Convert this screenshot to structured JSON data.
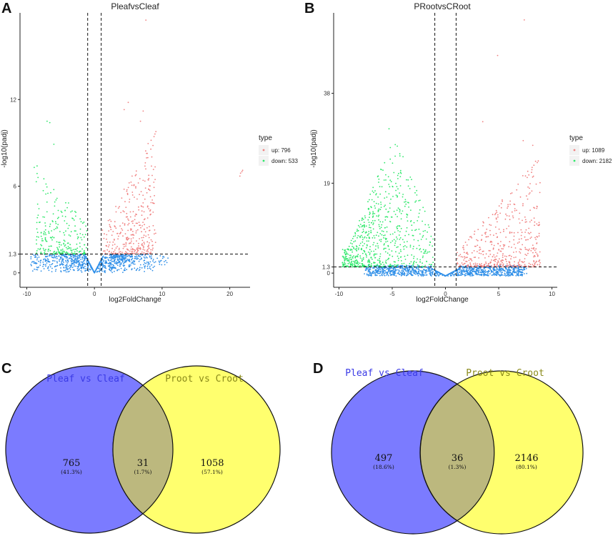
{
  "panels": {
    "A": {
      "letter": "A"
    },
    "B": {
      "letter": "B"
    },
    "C": {
      "letter": "C"
    },
    "D": {
      "letter": "D"
    }
  },
  "chart_data": [
    {
      "id": "A",
      "type": "scatter",
      "subtype": "volcano",
      "title": "PleafvsCleaf",
      "xlabel": "log2FoldChange",
      "ylabel": "-log10(padj)",
      "xlim": [
        -11,
        23
      ],
      "ylim": [
        -1,
        18
      ],
      "xticks": [
        -10,
        0,
        10,
        20
      ],
      "yticks": [
        0,
        1.3,
        6,
        12
      ],
      "vlines": [
        -1,
        1
      ],
      "hline": 1.3,
      "legend": {
        "title": "type",
        "position": "right",
        "entries": [
          {
            "label": "up: 796",
            "color": "#f08080"
          },
          {
            "label": "down: 533",
            "color": "#2ee86a"
          }
        ]
      },
      "colors": {
        "up": "#f08080",
        "down": "#2ee86a",
        "ns": "#2f8fe8"
      },
      "counts": {
        "up": 796,
        "down": 533
      },
      "outliers": [
        {
          "x": 7.6,
          "y": 17.5
        },
        {
          "x": 5.0,
          "y": 11.8
        },
        {
          "x": 7.2,
          "y": 11.2
        },
        {
          "x": 4.4,
          "y": 11.3
        },
        {
          "x": 6.8,
          "y": 10.5
        },
        {
          "x": -6.6,
          "y": 10.4
        },
        {
          "x": -7.0,
          "y": 10.5
        },
        {
          "x": -6.0,
          "y": 8.9
        },
        {
          "x": -8.9,
          "y": 7.3
        },
        {
          "x": 21.6,
          "y": 6.9
        },
        {
          "x": 21.8,
          "y": 7.0
        },
        {
          "x": 21.5,
          "y": 6.7
        },
        {
          "x": 21.9,
          "y": 7.1
        }
      ]
    },
    {
      "id": "B",
      "type": "scatter",
      "subtype": "volcano",
      "title": "PRootvsCRoot",
      "xlabel": "log2FoldChange",
      "ylabel": "-log10(padj)",
      "xlim": [
        -10.5,
        10.5
      ],
      "ylim": [
        -3,
        55
      ],
      "xticks": [
        -10,
        -5,
        0,
        5,
        10
      ],
      "yticks": [
        0,
        1.3,
        19,
        38
      ],
      "vlines": [
        -1,
        1
      ],
      "hline": 1.3,
      "legend": {
        "title": "type",
        "position": "right",
        "entries": [
          {
            "label": "up: 1089",
            "color": "#f08080"
          },
          {
            "label": "down: 2182",
            "color": "#2ee86a"
          }
        ]
      },
      "colors": {
        "up": "#f08080",
        "down": "#2ee86a",
        "ns": "#2f8fe8"
      },
      "counts": {
        "up": 1089,
        "down": 2182
      },
      "outliers": [
        {
          "x": 7.4,
          "y": 53.5
        },
        {
          "x": 4.9,
          "y": 46.0
        },
        {
          "x": 3.5,
          "y": 32.0
        },
        {
          "x": -5.3,
          "y": 30.5
        },
        {
          "x": 7.3,
          "y": 28.0
        },
        {
          "x": 8.2,
          "y": 27.0
        }
      ]
    },
    {
      "id": "C",
      "type": "venn",
      "sets": [
        {
          "name": "Pleaf vs Cleaf",
          "color": "#7b7bff",
          "label_color": "#3a3ae6",
          "only": 765,
          "only_pct": "(41.3%)"
        },
        {
          "name": "Proot vs Croot",
          "color": "#ffff6e",
          "label_color": "#8a8a1a",
          "only": 1058,
          "only_pct": "(57.1%)"
        }
      ],
      "intersection": {
        "value": 31,
        "pct": "(1.7%)"
      }
    },
    {
      "id": "D",
      "type": "venn",
      "sets": [
        {
          "name": "Pleaf vs Cleaf",
          "color": "#7b7bff",
          "label_color": "#3a3ae6",
          "only": 497,
          "only_pct": "(18.6%)"
        },
        {
          "name": "Proot vs Croot",
          "color": "#ffff6e",
          "label_color": "#8a8a1a",
          "only": 2146,
          "only_pct": "(80.1%)"
        }
      ],
      "intersection": {
        "value": 36,
        "pct": "(1.3%)"
      }
    }
  ]
}
